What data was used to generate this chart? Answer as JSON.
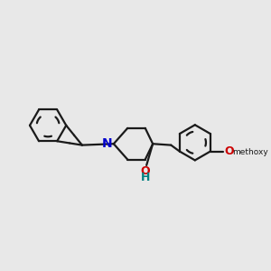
{
  "bg_color": "#e8e8e8",
  "bond_color": "#1a1a1a",
  "N_color": "#0000cc",
  "O_color": "#cc0000",
  "H_color": "#008080",
  "bond_width": 1.6,
  "fig_bg": "#e8e8e8",
  "xlim": [
    0,
    10
  ],
  "ylim": [
    0,
    10
  ]
}
